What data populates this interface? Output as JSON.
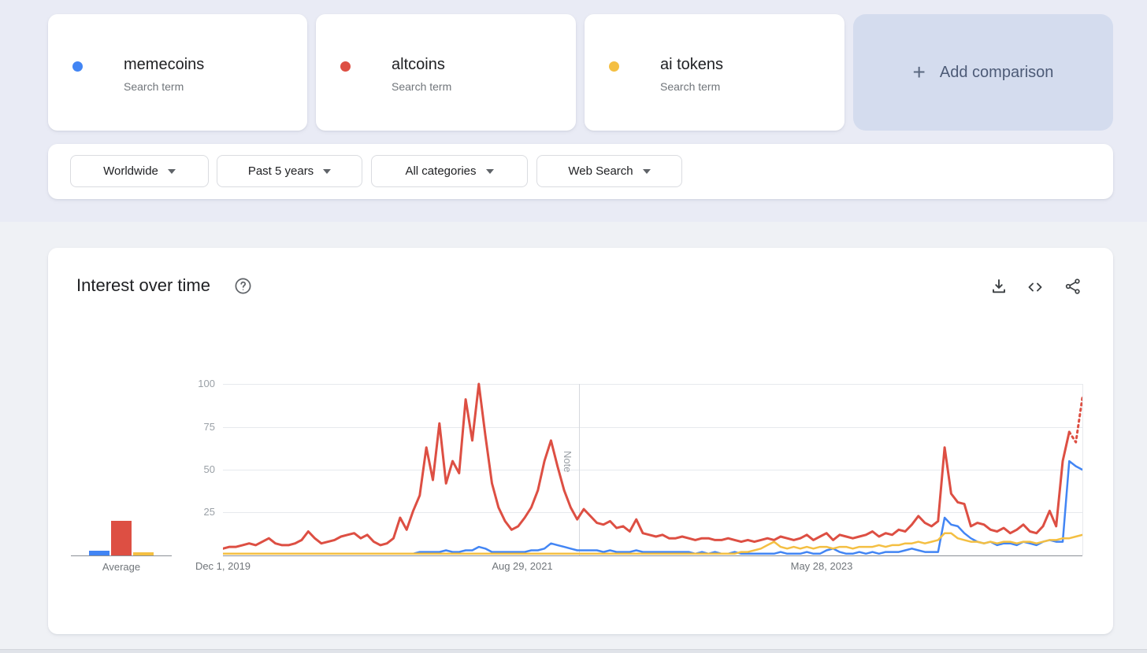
{
  "terms": [
    {
      "label": "memecoins",
      "sublabel": "Search term",
      "color": "#4285f4"
    },
    {
      "label": "altcoins",
      "sublabel": "Search term",
      "color": "#dd4f43"
    },
    {
      "label": "ai tokens",
      "sublabel": "Search term",
      "color": "#f4bf42"
    }
  ],
  "add_comparison": {
    "plus": "+",
    "label": "Add comparison"
  },
  "filters": [
    {
      "label": "Worldwide"
    },
    {
      "label": "Past 5 years"
    },
    {
      "label": "All categories"
    },
    {
      "label": "Web Search"
    }
  ],
  "panel": {
    "title": "Interest over time",
    "icons": [
      "help",
      "download",
      "embed",
      "share"
    ]
  },
  "chart_data": {
    "type": "line",
    "title": "Interest over time",
    "x_axis": {
      "tick_labels": [
        "Dec 1, 2019",
        "Aug 29, 2021",
        "May 28, 2023"
      ],
      "note_label": "Note"
    },
    "y_axis": {
      "ticks": [
        25,
        50,
        75,
        100
      ],
      "range": [
        0,
        100
      ],
      "grid": true
    },
    "series": [
      {
        "name": "memecoins",
        "color": "#4285f4",
        "values": [
          1,
          1,
          1,
          1,
          1,
          1,
          1,
          1,
          1,
          1,
          1,
          1,
          1,
          1,
          1,
          1,
          1,
          1,
          1,
          1,
          1,
          1,
          1,
          1,
          1,
          1,
          1,
          1,
          1,
          1,
          2,
          2,
          2,
          2,
          3,
          2,
          2,
          3,
          3,
          5,
          4,
          2,
          2,
          2,
          2,
          2,
          2,
          3,
          3,
          4,
          7,
          6,
          5,
          4,
          3,
          3,
          3,
          3,
          2,
          3,
          2,
          2,
          2,
          3,
          2,
          2,
          2,
          2,
          2,
          2,
          2,
          2,
          1,
          2,
          1,
          2,
          1,
          1,
          2,
          1,
          1,
          1,
          1,
          1,
          1,
          2,
          1,
          1,
          1,
          2,
          1,
          1,
          3,
          4,
          2,
          1,
          1,
          2,
          1,
          2,
          1,
          2,
          2,
          2,
          3,
          4,
          3,
          2,
          2,
          2,
          22,
          18,
          17,
          13,
          10,
          8,
          7,
          8,
          6,
          7,
          7,
          6,
          8,
          7,
          6,
          8,
          9,
          8,
          8,
          55,
          52,
          50
        ]
      },
      {
        "name": "altcoins",
        "color": "#dd4f43",
        "values": [
          4,
          5,
          5,
          6,
          7,
          6,
          8,
          10,
          7,
          6,
          6,
          7,
          9,
          14,
          10,
          7,
          8,
          9,
          11,
          12,
          13,
          10,
          12,
          8,
          6,
          7,
          10,
          22,
          15,
          26,
          35,
          63,
          44,
          77,
          42,
          55,
          48,
          91,
          67,
          100,
          70,
          42,
          28,
          20,
          15,
          17,
          22,
          28,
          38,
          55,
          67,
          52,
          38,
          28,
          21,
          27,
          23,
          19,
          18,
          20,
          16,
          17,
          14,
          21,
          13,
          12,
          11,
          12,
          10,
          10,
          11,
          10,
          9,
          10,
          10,
          9,
          9,
          10,
          9,
          8,
          9,
          8,
          9,
          10,
          9,
          11,
          10,
          9,
          10,
          12,
          9,
          11,
          13,
          9,
          12,
          11,
          10,
          11,
          12,
          14,
          11,
          13,
          12,
          15,
          14,
          18,
          23,
          19,
          17,
          20,
          63,
          36,
          31,
          30,
          17,
          19,
          18,
          15,
          14,
          16,
          13,
          15,
          18,
          14,
          13,
          17,
          26,
          17,
          55,
          72
        ],
        "projected_values": [
          72,
          66,
          92
        ],
        "projected_style": "dotted"
      },
      {
        "name": "ai tokens",
        "color": "#f4bf42",
        "values": [
          1,
          1,
          1,
          1,
          1,
          1,
          1,
          1,
          1,
          1,
          1,
          1,
          1,
          1,
          1,
          1,
          1,
          1,
          1,
          1,
          1,
          1,
          1,
          1,
          1,
          1,
          1,
          1,
          1,
          1,
          1,
          1,
          1,
          1,
          1,
          1,
          1,
          1,
          1,
          1,
          1,
          1,
          1,
          1,
          1,
          1,
          1,
          1,
          1,
          1,
          1,
          1,
          1,
          1,
          1,
          1,
          1,
          1,
          1,
          1,
          1,
          1,
          1,
          1,
          1,
          1,
          1,
          1,
          1,
          1,
          1,
          1,
          1,
          1,
          1,
          1,
          1,
          1,
          1,
          2,
          2,
          3,
          4,
          6,
          8,
          5,
          4,
          5,
          4,
          5,
          4,
          5,
          5,
          4,
          5,
          5,
          4,
          5,
          5,
          5,
          6,
          5,
          6,
          6,
          7,
          7,
          8,
          7,
          8,
          9,
          13,
          13,
          10,
          9,
          8,
          8,
          7,
          8,
          7,
          8,
          8,
          7,
          8,
          8,
          7,
          8,
          9,
          9,
          10,
          10,
          11,
          12
        ]
      }
    ],
    "averages": {
      "label": "Average",
      "values": [
        {
          "name": "memecoins",
          "value": 3
        },
        {
          "name": "altcoins",
          "value": 20
        },
        {
          "name": "ai tokens",
          "value": 2
        }
      ]
    }
  }
}
